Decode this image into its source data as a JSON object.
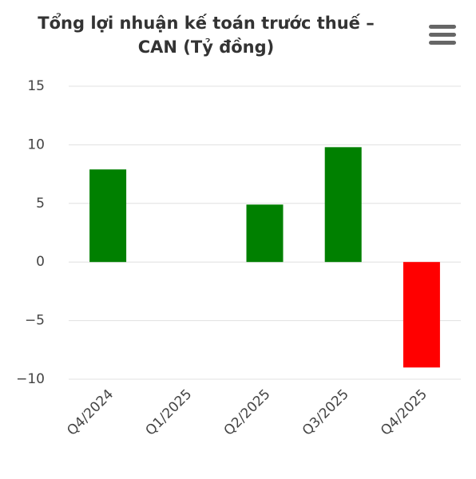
{
  "chart_data": {
    "type": "bar",
    "title": "Tổng lợi nhuận kế toán trước thuế – CAN (Tỷ đồng)",
    "categories": [
      "Q4/2024",
      "Q1/2025",
      "Q2/2025",
      "Q3/2025",
      "Q4/2025"
    ],
    "values": [
      7.9,
      0,
      4.9,
      9.8,
      -9
    ],
    "colors": [
      "#008000",
      "#008000",
      "#008000",
      "#008000",
      "#ff0000"
    ],
    "ylim": [
      -10,
      15
    ],
    "yticks": [
      {
        "value": -10,
        "label": "−10"
      },
      {
        "value": -5,
        "label": "−5"
      },
      0,
      5,
      10,
      15
    ],
    "grid": true
  }
}
